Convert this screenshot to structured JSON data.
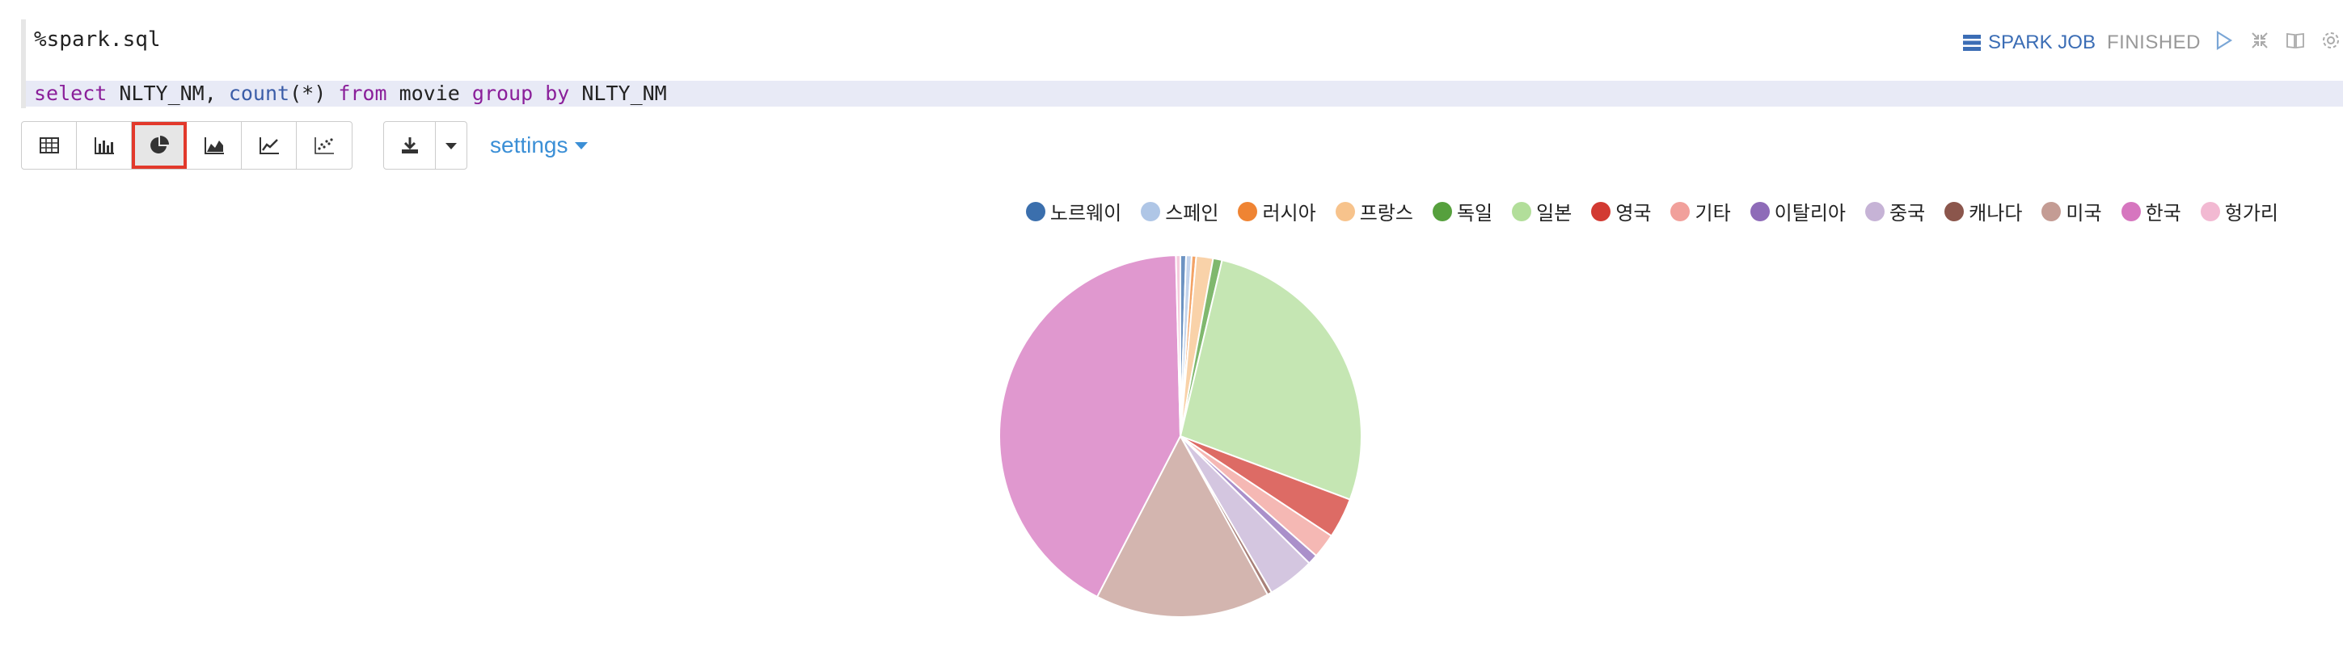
{
  "paragraph": {
    "title": "%spark.sql",
    "status_job_label": "SPARK JOB",
    "status": "FINISHED"
  },
  "code": {
    "tokens": [
      {
        "text": "select",
        "cls": "kw"
      },
      {
        "text": " NLTY_NM, ",
        "cls": ""
      },
      {
        "text": "count",
        "cls": "fn"
      },
      {
        "text": "(*) ",
        "cls": ""
      },
      {
        "text": "from",
        "cls": "kw"
      },
      {
        "text": " movie ",
        "cls": ""
      },
      {
        "text": "group",
        "cls": "kw"
      },
      {
        "text": " ",
        "cls": ""
      },
      {
        "text": "by",
        "cls": "kw"
      },
      {
        "text": " NLTY_NM",
        "cls": ""
      }
    ]
  },
  "toolbar": {
    "settings_label": "settings",
    "active_view": "pie",
    "views": [
      "table",
      "bar",
      "pie",
      "area",
      "line",
      "scatter"
    ]
  },
  "colors": {
    "accent": "#3b8fd6",
    "highlight_border": "#e2392b"
  },
  "chart_data": {
    "type": "pie",
    "categories": [
      "노르웨이",
      "스페인",
      "러시아",
      "프랑스",
      "독일",
      "일본",
      "영국",
      "기타",
      "이탈리아",
      "중국",
      "캐나다",
      "미국",
      "한국",
      "헝가리"
    ],
    "values": [
      0.5,
      0.5,
      0.4,
      1.5,
      0.8,
      27.0,
      3.6,
      2.2,
      0.9,
      4.2,
      0.4,
      15.6,
      42.0,
      0.4
    ],
    "colors": [
      "#3b6fad",
      "#afc6e6",
      "#ef8433",
      "#f7c38c",
      "#56a03d",
      "#b2de9a",
      "#d23a32",
      "#f1a09b",
      "#8e6bb8",
      "#c6b3d6",
      "#8b564c",
      "#c49c94",
      "#d676bf",
      "#f2b9d2"
    ],
    "legend_position": "top-right"
  }
}
